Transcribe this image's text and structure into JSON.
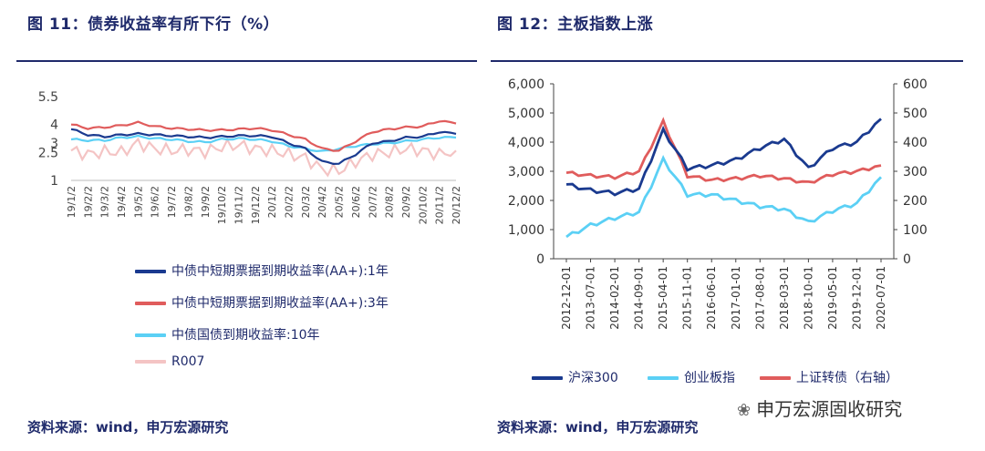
{
  "page": {
    "title_left": "图 11：债券收益率有所下行（%）",
    "title_right": "图 12：主板指数上涨",
    "source_left": "资料来源：wind，申万宏源研究",
    "source_right": "资料来源：wind，申万宏源研究",
    "watermark": "申万宏源固收研究",
    "watermark_icon": "wechat-icon"
  },
  "chart_data": [
    {
      "type": "line",
      "title": "图 11：债券收益率有所下行（%）",
      "ylim": [
        1,
        5.5
      ],
      "yticks": [
        "5.5",
        "4",
        "3",
        "2.5",
        "1"
      ],
      "ytick_values": [
        5.5,
        4,
        3,
        2.5,
        1
      ],
      "x": [
        "19/1/2",
        "19/2/2",
        "19/3/2",
        "19/4/2",
        "19/5/2",
        "19/6/2",
        "19/7/2",
        "19/8/2",
        "19/9/2",
        "19/10/2",
        "19/11/2",
        "19/12/2",
        "20/1/2",
        "20/2/2",
        "20/3/2",
        "20/4/2",
        "20/5/2",
        "20/6/2",
        "20/7/2",
        "20/8/2",
        "20/9/2",
        "20/10/2",
        "20/11/2",
        "20/12/2"
      ],
      "legend_position": "bottom",
      "series": [
        {
          "name": "中债中短期票据到期收益率(AA+):1年",
          "color": "#1a3a8f",
          "values": [
            3.75,
            3.45,
            3.35,
            3.45,
            3.5,
            3.45,
            3.4,
            3.35,
            3.3,
            3.35,
            3.4,
            3.4,
            3.35,
            3.0,
            2.7,
            2.0,
            1.9,
            2.4,
            3.0,
            3.1,
            3.3,
            3.35,
            3.6,
            3.5
          ]
        },
        {
          "name": "中债中短期票据到期收益率(AA+):3年",
          "color": "#e05c5c",
          "values": [
            4.0,
            3.8,
            3.85,
            3.95,
            4.1,
            3.9,
            3.8,
            3.75,
            3.7,
            3.7,
            3.75,
            3.8,
            3.7,
            3.45,
            3.2,
            2.7,
            2.6,
            3.1,
            3.6,
            3.75,
            3.85,
            3.9,
            4.2,
            4.05
          ]
        },
        {
          "name": "中债国债到期收益率:10年",
          "color": "#5bd0f5",
          "values": [
            3.2,
            3.15,
            3.15,
            3.3,
            3.35,
            3.25,
            3.2,
            3.1,
            3.05,
            3.2,
            3.25,
            3.2,
            3.1,
            2.85,
            2.7,
            2.55,
            2.7,
            2.85,
            2.95,
            3.0,
            3.1,
            3.2,
            3.3,
            3.3
          ]
        },
        {
          "name": "R007",
          "color": "#f4c4c4",
          "values": [
            2.6,
            2.4,
            2.55,
            2.5,
            3.0,
            2.7,
            2.6,
            2.65,
            2.55,
            2.8,
            2.9,
            2.7,
            2.6,
            2.4,
            2.2,
            1.6,
            1.5,
            2.0,
            2.4,
            2.5,
            2.7,
            2.6,
            2.4,
            2.6
          ]
        }
      ]
    },
    {
      "type": "line",
      "title": "图 12：主板指数上涨",
      "ylim": [
        0,
        6000
      ],
      "ylim_right": [
        0,
        600
      ],
      "yticks": [
        "6,000",
        "5,000",
        "4,000",
        "3,000",
        "2,000",
        "1,000",
        "0"
      ],
      "ytick_values": [
        6000,
        5000,
        4000,
        3000,
        2000,
        1000,
        0
      ],
      "yticks_right": [
        "600",
        "500",
        "400",
        "300",
        "200",
        "100",
        "0"
      ],
      "ytick_values_right": [
        600,
        500,
        400,
        300,
        200,
        100,
        0
      ],
      "x": [
        "2012-12-01",
        "2013-07-01",
        "2014-02-01",
        "2014-09-01",
        "2015-04-01",
        "2015-11-01",
        "2016-06-01",
        "2017-01-01",
        "2017-08-01",
        "2018-03-01",
        "2018-10-01",
        "2019-05-01",
        "2019-12-01",
        "2020-07-01"
      ],
      "legend_position": "bottom",
      "series": [
        {
          "name": "沪深300",
          "axis": "left",
          "color": "#1a3a8f",
          "values": [
            2550,
            2350,
            2250,
            2400,
            4400,
            3100,
            3200,
            3400,
            3800,
            4100,
            3100,
            3800,
            4000,
            4800
          ]
        },
        {
          "name": "创业板指",
          "axis": "left",
          "color": "#5bd0f5",
          "values": [
            750,
            1150,
            1400,
            1600,
            3400,
            2200,
            2200,
            2000,
            1800,
            1700,
            1250,
            1650,
            1900,
            2800
          ]
        },
        {
          "name": "上证转债（右轴）",
          "axis": "right",
          "color": "#e05c5c",
          "values": [
            295,
            285,
            280,
            300,
            470,
            285,
            270,
            275,
            285,
            275,
            260,
            290,
            300,
            320
          ]
        }
      ]
    }
  ]
}
